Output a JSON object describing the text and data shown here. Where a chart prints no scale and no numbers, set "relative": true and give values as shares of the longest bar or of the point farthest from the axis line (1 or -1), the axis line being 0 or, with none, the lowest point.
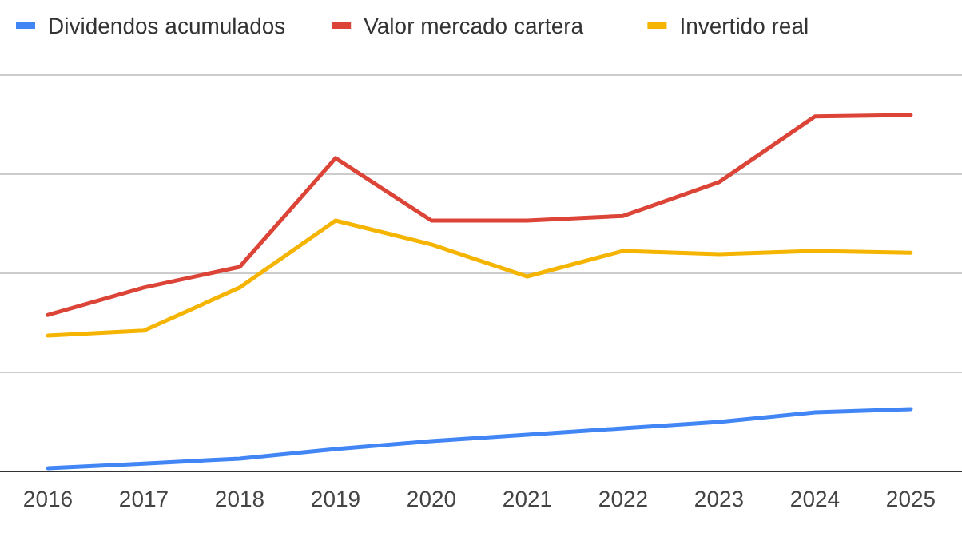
{
  "chart_data": {
    "type": "line",
    "relative": true,
    "grid": true,
    "legend": "top",
    "categories": [
      "2016",
      "2017",
      "2018",
      "2019",
      "2020",
      "2021",
      "2022",
      "2023",
      "2024",
      "2025"
    ],
    "series": [
      {
        "name": "Dividendos acumulados",
        "color": "#4285f4",
        "values": [
          0.009,
          0.022,
          0.036,
          0.063,
          0.085,
          0.103,
          0.121,
          0.139,
          0.166,
          0.175
        ]
      },
      {
        "name": "Valor mercado cartera",
        "color": "#db4437",
        "values": [
          0.439,
          0.516,
          0.574,
          0.879,
          0.704,
          0.704,
          0.717,
          0.812,
          0.996,
          1
        ]
      },
      {
        "name": "Invertido real",
        "color": "#f4b400",
        "values": [
          0.381,
          0.395,
          0.516,
          0.704,
          0.637,
          0.547,
          0.619,
          0.61,
          0.619,
          0.614
        ]
      }
    ]
  }
}
